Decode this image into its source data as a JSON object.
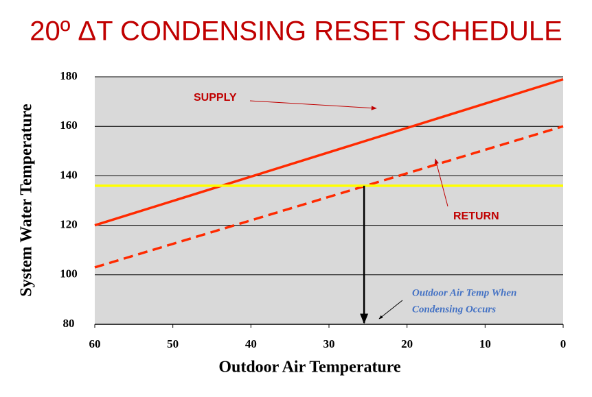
{
  "chart_data": {
    "type": "line",
    "title": "20º ΔT CONDENSING RESET SCHEDULE",
    "xlabel": "Outdoor Air Temperature",
    "ylabel": "System Water Temperature",
    "xlim": [
      60,
      0
    ],
    "xticks": [
      60,
      50,
      40,
      30,
      20,
      10,
      0
    ],
    "ylim": [
      80,
      180
    ],
    "yticks": [
      80,
      100,
      120,
      140,
      160,
      180
    ],
    "grid": true,
    "background": "#d9d9d9",
    "series": [
      {
        "name": "SUPPLY",
        "color": "#ff2a00",
        "dashed": false,
        "x": [
          60,
          0
        ],
        "values": [
          120,
          179
        ]
      },
      {
        "name": "RETURN",
        "color": "#ff2a00",
        "dashed": true,
        "x": [
          60,
          0
        ],
        "values": [
          103,
          160
        ]
      },
      {
        "color": "#ffff00",
        "dashed": false,
        "x": [
          60,
          0
        ],
        "values": [
          136,
          136
        ]
      }
    ],
    "arrow": {
      "x": 25.5,
      "y": [
        136,
        80
      ],
      "color": "#000000"
    },
    "annotations": [
      "Outdoor Air Temp When",
      "Condensing Occurs"
    ]
  }
}
